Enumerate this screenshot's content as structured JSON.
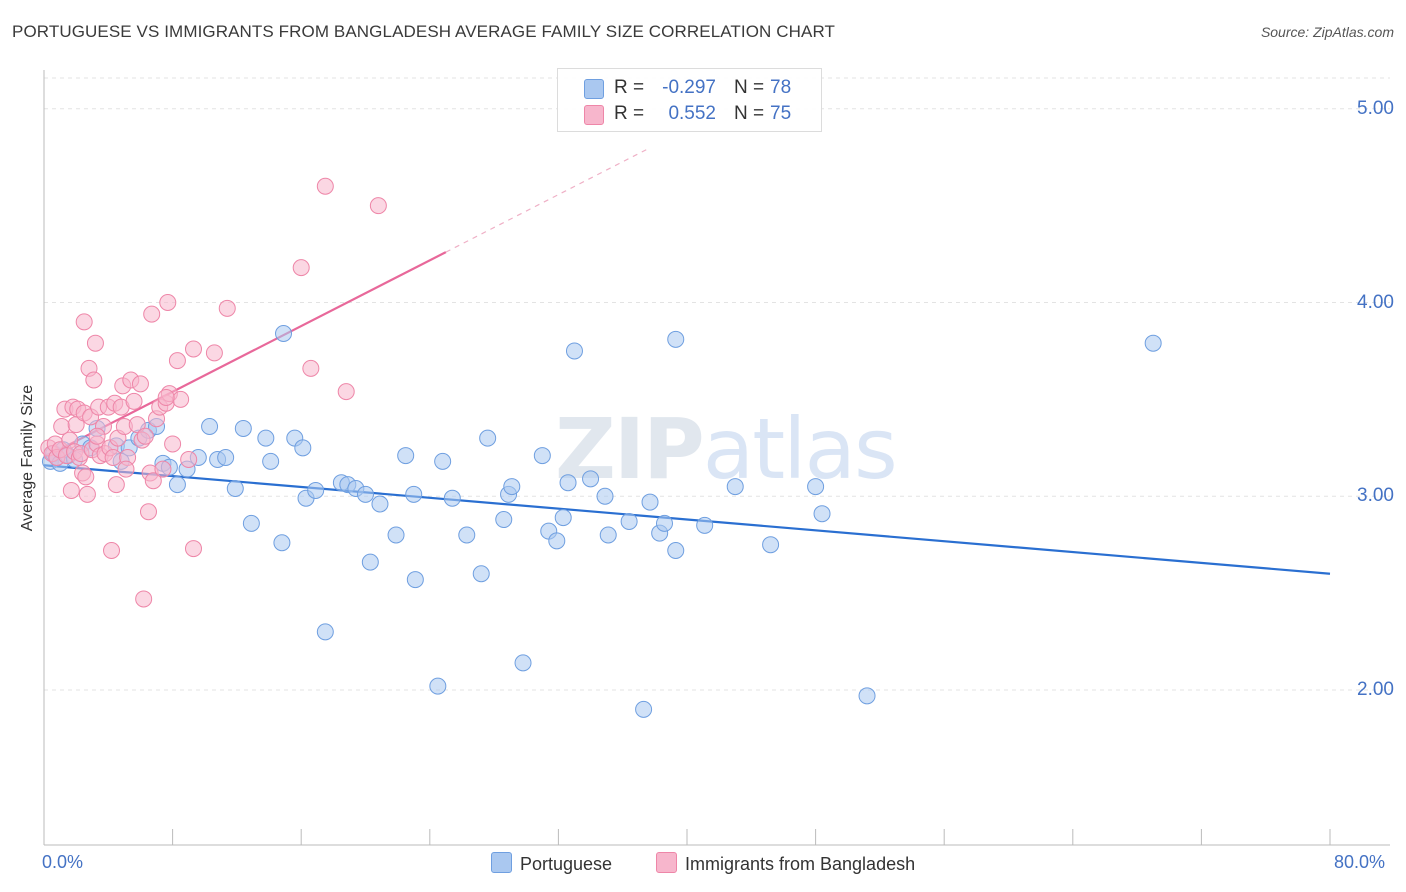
{
  "title": "PORTUGUESE VS IMMIGRANTS FROM BANGLADESH AVERAGE FAMILY SIZE CORRELATION CHART",
  "source": "Source: ZipAtlas.com",
  "watermark": {
    "part1": "ZIP",
    "part2": "atlas"
  },
  "legend_top": {
    "rows": [
      {
        "r_label": "R =",
        "r_value": "-0.297",
        "n_label": "N =",
        "n_value": "78",
        "color": "#aac8f0"
      },
      {
        "r_label": "R =",
        "r_value": "0.552",
        "n_label": "N =",
        "n_value": "75",
        "color": "#f7b6cc"
      }
    ]
  },
  "legend_bottom": {
    "items": [
      {
        "label": "Portuguese",
        "color": "#aac8f0"
      },
      {
        "label": "Immigrants from Bangladesh",
        "color": "#f7b6cc"
      }
    ]
  },
  "chart_data": {
    "type": "scatter",
    "ylabel": "Average Family Size",
    "xlim": [
      0,
      80
    ],
    "ylim": [
      1.2,
      5.2
    ],
    "x_tick_labels": [
      "0.0%",
      "80.0%"
    ],
    "y_ticks": [
      2.0,
      3.0,
      4.0,
      5.0
    ],
    "y_tick_labels": [
      "2.00",
      "3.00",
      "4.00",
      "5.00"
    ],
    "grid": true,
    "series": [
      {
        "name": "Portuguese",
        "color": "#6f9fe0",
        "fill": "#aac8f0",
        "trend": {
          "x": [
            0,
            80
          ],
          "y": [
            3.16,
            2.6
          ],
          "color": "#2a6fd1"
        },
        "points": [
          [
            0.4,
            3.18
          ],
          [
            0.6,
            3.22
          ],
          [
            0.8,
            3.2
          ],
          [
            1.0,
            3.17
          ],
          [
            1.2,
            3.24
          ],
          [
            1.5,
            3.21
          ],
          [
            1.9,
            3.19
          ],
          [
            2.4,
            3.27
          ],
          [
            2.9,
            3.25
          ],
          [
            3.3,
            3.35
          ],
          [
            4.5,
            3.26
          ],
          [
            4.8,
            3.18
          ],
          [
            5.3,
            3.25
          ],
          [
            5.9,
            3.3
          ],
          [
            6.5,
            3.34
          ],
          [
            7.0,
            3.36
          ],
          [
            7.4,
            3.17
          ],
          [
            7.8,
            3.15
          ],
          [
            8.3,
            3.06
          ],
          [
            8.9,
            3.14
          ],
          [
            9.6,
            3.2
          ],
          [
            10.3,
            3.36
          ],
          [
            10.8,
            3.19
          ],
          [
            11.3,
            3.2
          ],
          [
            11.9,
            3.04
          ],
          [
            12.4,
            3.35
          ],
          [
            12.9,
            2.86
          ],
          [
            13.8,
            3.3
          ],
          [
            14.1,
            3.18
          ],
          [
            14.8,
            2.76
          ],
          [
            14.9,
            3.84
          ],
          [
            15.6,
            3.3
          ],
          [
            16.1,
            3.25
          ],
          [
            16.3,
            2.99
          ],
          [
            16.9,
            3.03
          ],
          [
            17.5,
            2.3
          ],
          [
            18.5,
            3.07
          ],
          [
            18.9,
            3.06
          ],
          [
            19.4,
            3.04
          ],
          [
            20.0,
            3.01
          ],
          [
            20.3,
            2.66
          ],
          [
            20.9,
            2.96
          ],
          [
            21.9,
            2.8
          ],
          [
            22.5,
            3.21
          ],
          [
            23.0,
            3.01
          ],
          [
            23.1,
            2.57
          ],
          [
            24.5,
            2.02
          ],
          [
            24.8,
            3.18
          ],
          [
            25.4,
            2.99
          ],
          [
            26.3,
            2.8
          ],
          [
            27.2,
            2.6
          ],
          [
            27.6,
            3.3
          ],
          [
            28.6,
            2.88
          ],
          [
            28.9,
            3.01
          ],
          [
            29.1,
            3.05
          ],
          [
            29.8,
            2.14
          ],
          [
            31.0,
            3.21
          ],
          [
            31.4,
            2.82
          ],
          [
            31.9,
            2.77
          ],
          [
            32.3,
            2.89
          ],
          [
            32.6,
            3.07
          ],
          [
            33.0,
            3.75
          ],
          [
            34.0,
            3.09
          ],
          [
            34.9,
            3.0
          ],
          [
            35.1,
            2.8
          ],
          [
            36.4,
            2.87
          ],
          [
            37.3,
            1.9
          ],
          [
            37.7,
            2.97
          ],
          [
            38.3,
            2.81
          ],
          [
            38.6,
            2.86
          ],
          [
            39.3,
            2.72
          ],
          [
            39.3,
            3.81
          ],
          [
            41.1,
            2.85
          ],
          [
            43.0,
            3.05
          ],
          [
            45.2,
            2.75
          ],
          [
            48.0,
            3.05
          ],
          [
            48.4,
            2.91
          ],
          [
            51.2,
            1.97
          ],
          [
            69.0,
            3.79
          ]
        ]
      },
      {
        "name": "Immigrants from Bangladesh",
        "color": "#ee86a8",
        "fill": "#f7b6cc",
        "trend": {
          "x": [
            0,
            25
          ],
          "y": [
            3.2,
            4.26
          ],
          "color": "#e8689a"
        },
        "trend_extension": {
          "x": [
            25,
            37.5
          ],
          "y": [
            4.26,
            4.79
          ]
        },
        "points": [
          [
            0.3,
            3.25
          ],
          [
            0.5,
            3.22
          ],
          [
            0.7,
            3.27
          ],
          [
            0.8,
            3.2
          ],
          [
            1.0,
            3.24
          ],
          [
            1.1,
            3.36
          ],
          [
            1.3,
            3.45
          ],
          [
            1.4,
            3.21
          ],
          [
            1.6,
            3.29
          ],
          [
            1.7,
            3.03
          ],
          [
            1.8,
            3.46
          ],
          [
            1.9,
            3.23
          ],
          [
            2.0,
            3.37
          ],
          [
            2.1,
            3.45
          ],
          [
            2.2,
            3.2
          ],
          [
            2.3,
            3.22
          ],
          [
            2.4,
            3.12
          ],
          [
            2.5,
            3.43
          ],
          [
            2.5,
            3.9
          ],
          [
            2.6,
            3.1
          ],
          [
            2.7,
            3.01
          ],
          [
            2.8,
            3.66
          ],
          [
            2.9,
            3.41
          ],
          [
            3.0,
            3.24
          ],
          [
            3.1,
            3.6
          ],
          [
            3.2,
            3.79
          ],
          [
            3.3,
            3.27
          ],
          [
            3.4,
            3.46
          ],
          [
            3.5,
            3.21
          ],
          [
            3.7,
            3.36
          ],
          [
            3.8,
            3.22
          ],
          [
            4.0,
            3.46
          ],
          [
            4.1,
            3.25
          ],
          [
            4.2,
            2.72
          ],
          [
            4.3,
            3.2
          ],
          [
            4.4,
            3.48
          ],
          [
            4.5,
            3.06
          ],
          [
            4.6,
            3.3
          ],
          [
            4.8,
            3.46
          ],
          [
            4.9,
            3.57
          ],
          [
            5.0,
            3.36
          ],
          [
            5.2,
            3.2
          ],
          [
            5.4,
            3.6
          ],
          [
            5.6,
            3.49
          ],
          [
            5.8,
            3.37
          ],
          [
            6.0,
            3.58
          ],
          [
            6.1,
            3.29
          ],
          [
            6.2,
            2.47
          ],
          [
            6.3,
            3.31
          ],
          [
            6.5,
            2.92
          ],
          [
            6.6,
            3.12
          ],
          [
            6.7,
            3.94
          ],
          [
            6.8,
            3.08
          ],
          [
            7.0,
            3.4
          ],
          [
            7.2,
            3.46
          ],
          [
            7.4,
            3.14
          ],
          [
            7.6,
            3.48
          ],
          [
            7.7,
            4.0
          ],
          [
            7.8,
            3.53
          ],
          [
            8.0,
            3.27
          ],
          [
            8.3,
            3.7
          ],
          [
            8.5,
            3.5
          ],
          [
            9.3,
            2.73
          ],
          [
            9.3,
            3.76
          ],
          [
            10.6,
            3.74
          ],
          [
            11.4,
            3.97
          ],
          [
            16.0,
            4.18
          ],
          [
            16.6,
            3.66
          ],
          [
            17.5,
            4.6
          ],
          [
            18.8,
            3.54
          ],
          [
            20.8,
            4.5
          ],
          [
            7.6,
            3.51
          ],
          [
            9.0,
            3.19
          ],
          [
            3.3,
            3.31
          ],
          [
            5.1,
            3.14
          ]
        ]
      }
    ]
  }
}
